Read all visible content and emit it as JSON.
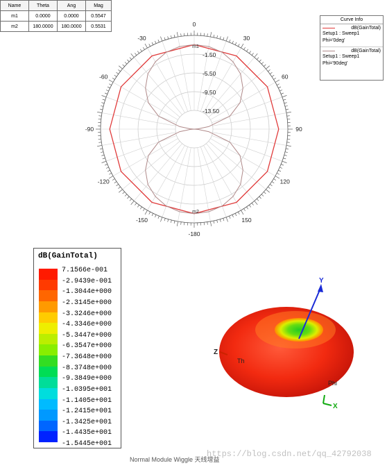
{
  "markers": {
    "headers": [
      "Name",
      "Theta",
      "Ang",
      "Mag"
    ],
    "rows": [
      [
        "m1",
        "0.0000",
        "0.0000",
        "0.5547"
      ],
      [
        "m2",
        "180.0000",
        "180.0000",
        "0.5531"
      ]
    ]
  },
  "curve_info": {
    "title": "Curve Info",
    "entries": [
      {
        "name": "dB(GainTotal)",
        "setup": "Setup1 : Sweep1",
        "phi": "Phi='0deg'",
        "color": "#e03a3a"
      },
      {
        "name": "dB(GainTotal)",
        "setup": "Setup1 : Sweep1",
        "phi": "Phi='90deg'",
        "color": "#b08a8a"
      }
    ]
  },
  "chart_data": [
    {
      "type": "polar",
      "angle_ticks": [
        "0",
        "30",
        "60",
        "90",
        "120",
        "150",
        "-180",
        "-150",
        "-120",
        "-90",
        "-60",
        "-30"
      ],
      "radial_ticks": [
        "-1.50",
        "-5.50",
        "-9.50",
        "-13.50"
      ],
      "rlim": [
        -17.5,
        2.5
      ],
      "marker_labels": [
        "m1",
        "m2"
      ],
      "series": [
        {
          "name": "dB(GainTotal) Setup1 : Sweep1 Phi='0deg'",
          "color": "#e03a3a",
          "theta_deg": [
            0,
            30,
            60,
            90,
            120,
            150,
            180,
            210,
            240,
            270,
            300,
            330
          ],
          "values": [
            0.55,
            0.55,
            0.55,
            0.55,
            0.55,
            0.55,
            0.55,
            0.55,
            0.55,
            0.55,
            0.55,
            0.55
          ]
        },
        {
          "name": "dB(GainTotal) Setup1 : Sweep1 Phi='90deg'",
          "color": "#b08a8a",
          "theta_deg": [
            0,
            10,
            20,
            30,
            40,
            50,
            60,
            70,
            80,
            85,
            90,
            95,
            100,
            110,
            120,
            130,
            140,
            150,
            160,
            170,
            180,
            190,
            200,
            210,
            220,
            230,
            240,
            250,
            260,
            265,
            270,
            275,
            280,
            290,
            300,
            310,
            320,
            330,
            340,
            350
          ],
          "values": [
            0.55,
            0.4,
            -0.05,
            -0.9,
            -2.1,
            -3.9,
            -6.2,
            -9.4,
            -14.3,
            -16.6,
            -17.5,
            -16.6,
            -14.3,
            -9.4,
            -6.2,
            -3.9,
            -2.1,
            -0.9,
            -0.05,
            0.4,
            0.55,
            0.4,
            -0.05,
            -0.9,
            -2.1,
            -3.9,
            -6.2,
            -9.4,
            -14.3,
            -16.6,
            -17.5,
            -16.6,
            -14.3,
            -9.4,
            -6.2,
            -3.9,
            -2.1,
            -0.9,
            -0.05,
            0.4
          ]
        }
      ]
    },
    {
      "type": "colorbar",
      "title": "dB(GainTotal)",
      "labels": [
        "7.1566e-001",
        "-2.9439e-001",
        "-1.3044e+000",
        "-2.3145e+000",
        "-3.3246e+000",
        "-4.3346e+000",
        "-5.3447e+000",
        "-6.3547e+000",
        "-7.3648e+000",
        "-8.3748e+000",
        "-9.3849e+000",
        "-1.0395e+001",
        "-1.1405e+001",
        "-1.2415e+001",
        "-1.3425e+001",
        "-1.4435e+001",
        "-1.5445e+001"
      ],
      "colors": [
        "#ff1a00",
        "#ff3a00",
        "#ff6600",
        "#ff9a00",
        "#ffcc00",
        "#eeee00",
        "#bbee00",
        "#88ee00",
        "#33dd22",
        "#00dd55",
        "#00dd99",
        "#00dddd",
        "#00bbff",
        "#0099ff",
        "#0066ff",
        "#0022ff"
      ]
    }
  ],
  "pattern_3d": {
    "axis_labels": {
      "y": "Y",
      "z": "Z",
      "x": "X",
      "theta": "Th",
      "phi": "Phi"
    }
  },
  "caption": "Normal Module Wiggle 天线增益",
  "watermark": "https://blog.csdn.net/qq_42792038"
}
